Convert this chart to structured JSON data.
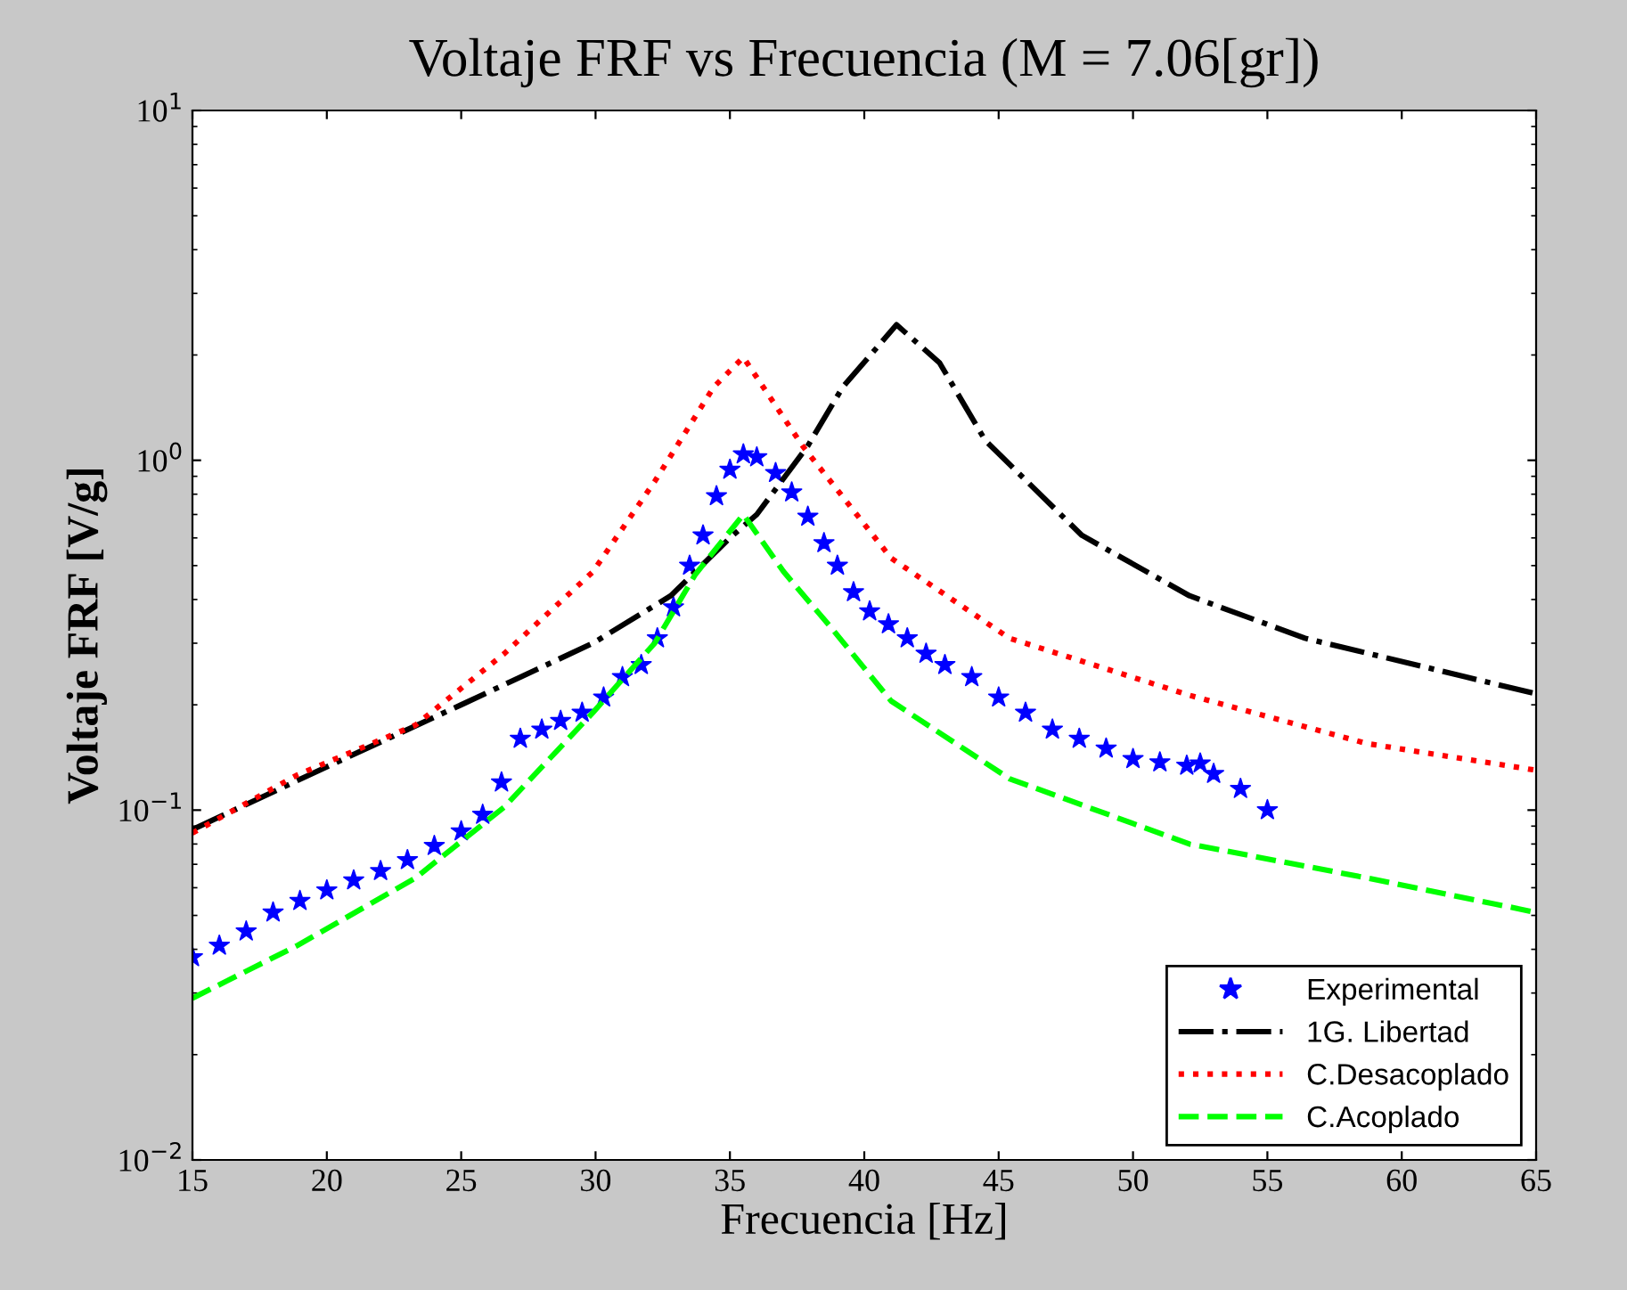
{
  "chart_data": {
    "type": "line",
    "title": "Voltaje FRF vs Frecuencia (M = 7.06[gr])",
    "xlabel": "Frecuencia [Hz]",
    "ylabel": "Voltaje FRF [V/g]",
    "log": "y",
    "xlim": [
      15,
      65
    ],
    "xticks": [
      15,
      20,
      25,
      30,
      35,
      40,
      45,
      50,
      55,
      60,
      65
    ],
    "ylim": [
      0.01,
      10
    ],
    "yticks": [
      {
        "value": 0.01,
        "label": "10$^{−2}$"
      },
      {
        "value": 0.1,
        "label": "10$^{−1}$"
      },
      {
        "value": 1,
        "label": "10$^{0}$"
      },
      {
        "value": 10,
        "label": "10$^{1}$"
      }
    ],
    "grid": false,
    "legend": "bottom right",
    "series": [
      {
        "name": "Experimental",
        "type": "scatter",
        "marker": "star",
        "color": "#0000ff",
        "x": [
          15,
          16,
          17,
          18,
          19,
          20,
          21,
          22,
          23,
          24,
          25,
          25.8,
          26.5,
          27.2,
          28,
          28.7,
          29.5,
          30.3,
          31,
          31.7,
          32.3,
          32.9,
          33.5,
          34,
          34.5,
          35,
          35.5,
          36,
          36.7,
          37.3,
          37.9,
          38.5,
          39,
          39.6,
          40.2,
          40.9,
          41.6,
          42.3,
          43,
          44,
          45,
          46,
          47,
          48,
          49,
          50,
          51,
          52,
          52.5,
          53,
          54,
          55
        ],
        "values": [
          0.038,
          0.041,
          0.045,
          0.051,
          0.055,
          0.059,
          0.063,
          0.067,
          0.072,
          0.079,
          0.087,
          0.097,
          0.12,
          0.16,
          0.17,
          0.18,
          0.19,
          0.21,
          0.24,
          0.26,
          0.31,
          0.38,
          0.5,
          0.61,
          0.79,
          0.94,
          1.04,
          1.02,
          0.92,
          0.81,
          0.69,
          0.58,
          0.5,
          0.42,
          0.37,
          0.34,
          0.31,
          0.28,
          0.26,
          0.24,
          0.21,
          0.19,
          0.17,
          0.16,
          0.15,
          0.14,
          0.137,
          0.134,
          0.136,
          0.127,
          0.115,
          0.1
        ]
      },
      {
        "name": "1G. Libertad",
        "line_style": "dashdot",
        "color": "#000000",
        "x": [
          15,
          20,
          25,
          29.9,
          32.8,
          35,
          36,
          37.9,
          39.2,
          41.2,
          42.8,
          44.5,
          48.1,
          52.1,
          56.4,
          65
        ],
        "values": [
          0.088,
          0.133,
          0.2,
          0.3,
          0.41,
          0.6,
          0.7,
          1.1,
          1.62,
          2.44,
          1.9,
          1.14,
          0.61,
          0.41,
          0.31,
          0.215
        ]
      },
      {
        "name": "C.Desacoplado",
        "line_style": "dotted",
        "color": "#ff0000",
        "x": [
          15,
          18.9,
          23.3,
          26.6,
          29.9,
          32.2,
          34.4,
          35.5,
          37.7,
          41,
          45.4,
          52.1,
          58.7,
          65
        ],
        "values": [
          0.086,
          0.126,
          0.175,
          0.28,
          0.48,
          0.87,
          1.62,
          1.97,
          1.1,
          0.525,
          0.31,
          0.213,
          0.155,
          0.13
        ]
      },
      {
        "name": "C.Acoplado",
        "line_style": "dashed",
        "color": "#00ff00",
        "x": [
          15,
          18.9,
          23.3,
          26.6,
          29.9,
          32.2,
          33.7,
          35.5,
          37,
          38.8,
          41,
          45.4,
          52.1,
          58.7,
          65
        ],
        "values": [
          0.029,
          0.041,
          0.064,
          0.102,
          0.19,
          0.3,
          0.47,
          0.7,
          0.48,
          0.33,
          0.205,
          0.123,
          0.08,
          0.064,
          0.051
        ]
      }
    ]
  }
}
